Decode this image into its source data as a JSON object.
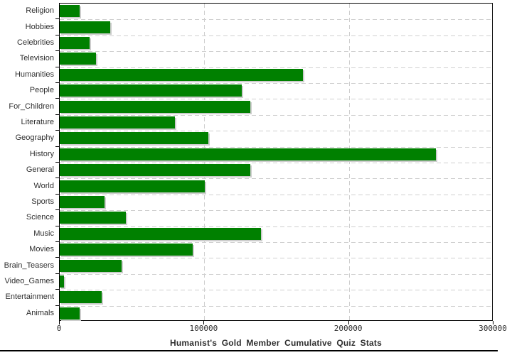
{
  "title": "Humanist's Gold Member Cumulative Quiz Stats",
  "colors": {
    "bar": "#008000",
    "bar_shadow": "#cdcdcd",
    "grid": "#cfcfcf",
    "axis": "#000000",
    "text": "#2e2e2e",
    "background": "#ffffff"
  },
  "chart_data": {
    "type": "bar",
    "orientation": "horizontal",
    "title": "Humanist's Gold Member Cumulative Quiz Stats",
    "xlabel": "",
    "ylabel": "",
    "xlim": [
      0,
      300000
    ],
    "x_ticks": [
      0,
      100000,
      200000,
      300000
    ],
    "x_tick_labels": [
      "0",
      "100000",
      "200000",
      "300000"
    ],
    "grid": "dashed",
    "legend": "none",
    "categories": [
      "Religion",
      "Hobbies",
      "Celebrities",
      "Television",
      "Humanities",
      "People",
      "For_Children",
      "Literature",
      "Geography",
      "History",
      "General",
      "World",
      "Sports",
      "Science",
      "Music",
      "Movies",
      "Brain_Teasers",
      "Video_Games",
      "Entertainment",
      "Animals"
    ],
    "values": [
      14000,
      35000,
      20500,
      25000,
      168000,
      126000,
      132000,
      79500,
      103000,
      260000,
      132000,
      100500,
      31000,
      45500,
      139000,
      92000,
      43000,
      3000,
      29000,
      14000
    ]
  }
}
